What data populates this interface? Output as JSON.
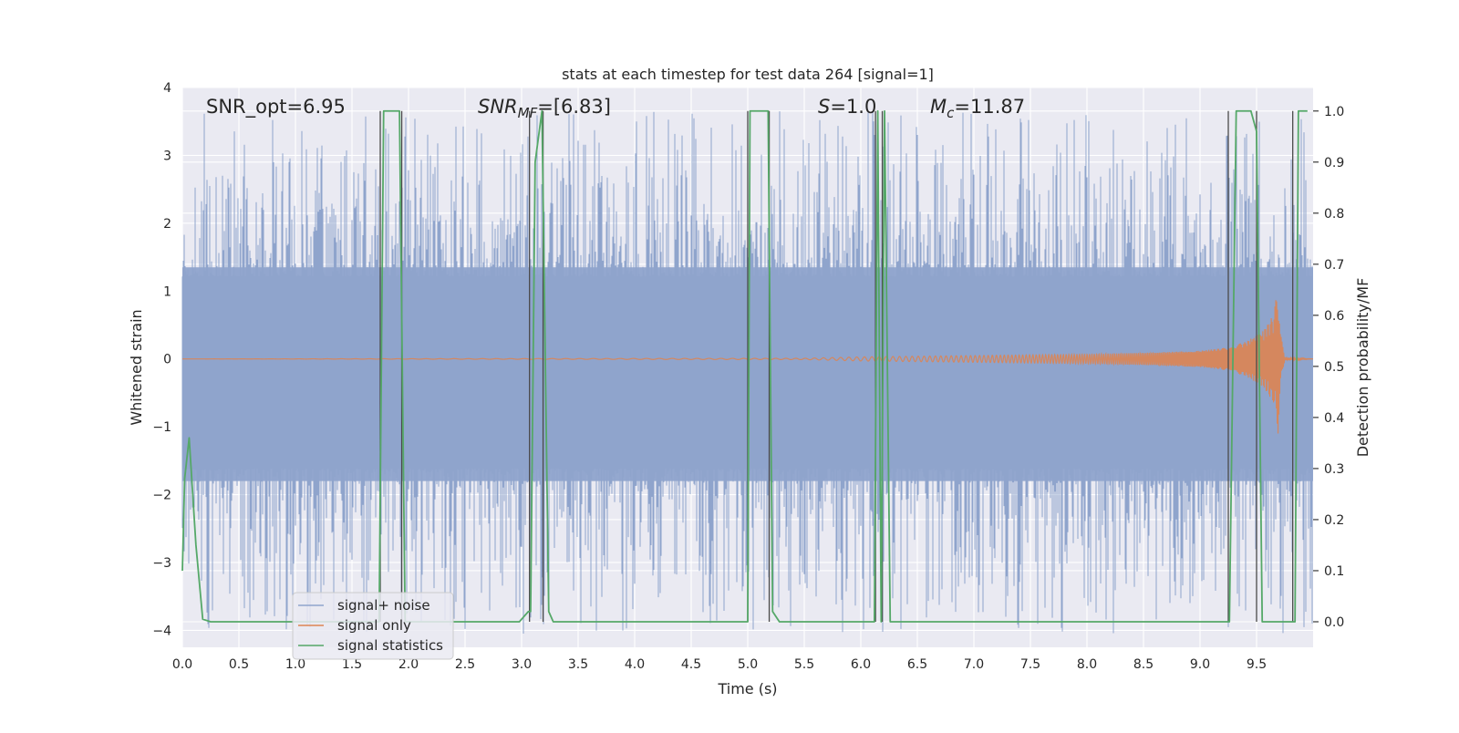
{
  "chart_data": {
    "type": "line",
    "title": "stats at each timestep for test data 264 [signal=1]",
    "xlabel": "Time (s)",
    "ylabel_left": "Whitened strain",
    "ylabel_right": "Detection probability/MF",
    "xlim": [
      0.0,
      10.0
    ],
    "ylim_left": [
      -4.25,
      4.0
    ],
    "ylim_right": [
      -0.05,
      1.046
    ],
    "x_ticks": [
      0.0,
      0.5,
      1.0,
      1.5,
      2.0,
      2.5,
      3.0,
      3.5,
      4.0,
      4.5,
      5.0,
      5.5,
      6.0,
      6.5,
      7.0,
      7.5,
      8.0,
      8.5,
      9.0,
      9.5
    ],
    "x_tick_labels": [
      "0.0",
      "0.5",
      "1.0",
      "1.5",
      "2.0",
      "2.5",
      "3.0",
      "3.5",
      "4.0",
      "4.5",
      "5.0",
      "5.5",
      "6.0",
      "6.5",
      "7.0",
      "7.5",
      "8.0",
      "8.5",
      "9.0",
      "9.5"
    ],
    "y_ticks_left": [
      4,
      3,
      2,
      1,
      0,
      -1,
      -2,
      -3,
      -4
    ],
    "y_tick_labels_left": [
      "4",
      "3",
      "2",
      "1",
      "0",
      "−1",
      "−2",
      "−3",
      "−4"
    ],
    "y_ticks_right": [
      1.0,
      0.9,
      0.8,
      0.7,
      0.6,
      0.5,
      0.4,
      0.3,
      0.2,
      0.1,
      0.0
    ],
    "y_tick_labels_right": [
      "1.0",
      "0.9",
      "0.8",
      "0.7",
      "0.6",
      "0.5",
      "0.4",
      "0.3",
      "0.2",
      "0.1",
      "0.0"
    ],
    "annotations": {
      "snr_opt": "SNR_opt=6.95",
      "snr_mf_symbol": "SNR",
      "snr_mf_sub": "MF",
      "snr_mf_value": "=[6.83]",
      "s_symbol": "S",
      "s_value": "=1.0",
      "mc_symbol": "M",
      "mc_sub": "c",
      "mc_value": "=11.87"
    },
    "legend": {
      "position": "lower-left",
      "entries": [
        "signal+ noise",
        "signal only",
        "signal statistics"
      ]
    },
    "colors": {
      "noise": "#8fa4cc",
      "signal": "#dd8452",
      "stats": "#55a868",
      "vlines": "#4a4a4a",
      "axes_bg": "#eaeaf2",
      "grid": "#ffffff"
    },
    "series": [
      {
        "name": "signal statistics",
        "axis": "right",
        "x": [
          0.0,
          0.02,
          0.06,
          0.12,
          0.18,
          0.25,
          0.3,
          0.5,
          1.0,
          1.5,
          1.74,
          1.78,
          1.88,
          1.92,
          1.97,
          2.0,
          2.5,
          2.98,
          3.0,
          3.06,
          3.08,
          3.12,
          3.18,
          3.24,
          3.28,
          3.5,
          4.0,
          4.5,
          5.0,
          5.02,
          5.08,
          5.18,
          5.22,
          5.28,
          5.33,
          5.5,
          6.0,
          6.12,
          6.15,
          6.18,
          6.21,
          6.26,
          6.5,
          7.0,
          7.5,
          8.0,
          8.5,
          9.0,
          9.26,
          9.32,
          9.45,
          9.5,
          9.55,
          9.6,
          9.72,
          9.84,
          9.87,
          9.93,
          9.95
        ],
        "y": [
          0.1,
          0.28,
          0.36,
          0.15,
          0.005,
          0.0,
          0.0,
          0.0,
          0.0,
          0.0,
          0.0,
          1.0,
          1.0,
          1.0,
          0.0,
          0.0,
          0.0,
          0.0,
          0.005,
          0.02,
          0.02,
          0.9,
          1.0,
          0.02,
          0.0,
          0.0,
          0.0,
          0.0,
          0.0,
          1.0,
          1.0,
          1.0,
          0.02,
          0.0,
          0.0,
          0.0,
          0.0,
          0.0,
          1.0,
          0.0,
          1.0,
          0.0,
          0.0,
          0.0,
          0.0,
          0.0,
          0.0,
          0.0,
          0.0,
          1.0,
          1.0,
          0.96,
          0.0,
          0.0,
          0.0,
          0.0,
          1.0,
          1.0,
          1.0
        ]
      },
      {
        "name": "signal only",
        "axis": "left",
        "x": [
          0.0,
          5.5,
          6.0,
          6.5,
          7.0,
          7.5,
          8.0,
          8.5,
          9.0,
          9.2,
          9.4,
          9.55,
          9.65,
          9.69,
          9.71,
          9.75,
          10.0
        ],
        "amplitude": [
          0.0,
          0.01,
          0.03,
          0.04,
          0.05,
          0.06,
          0.07,
          0.09,
          0.12,
          0.16,
          0.25,
          0.4,
          0.65,
          1.1,
          0.4,
          0.02,
          0.0
        ]
      },
      {
        "name": "signal+ noise",
        "axis": "left",
        "x_range": [
          0.0,
          10.0
        ],
        "core_envelope": [
          -1.8,
          1.35
        ],
        "extremes": [
          -4.05,
          3.65
        ]
      }
    ],
    "vertical_lines_x": [
      1.75,
      1.94,
      3.07,
      3.19,
      5.0,
      5.19,
      6.13,
      6.19,
      9.25,
      9.5,
      9.82
    ]
  }
}
